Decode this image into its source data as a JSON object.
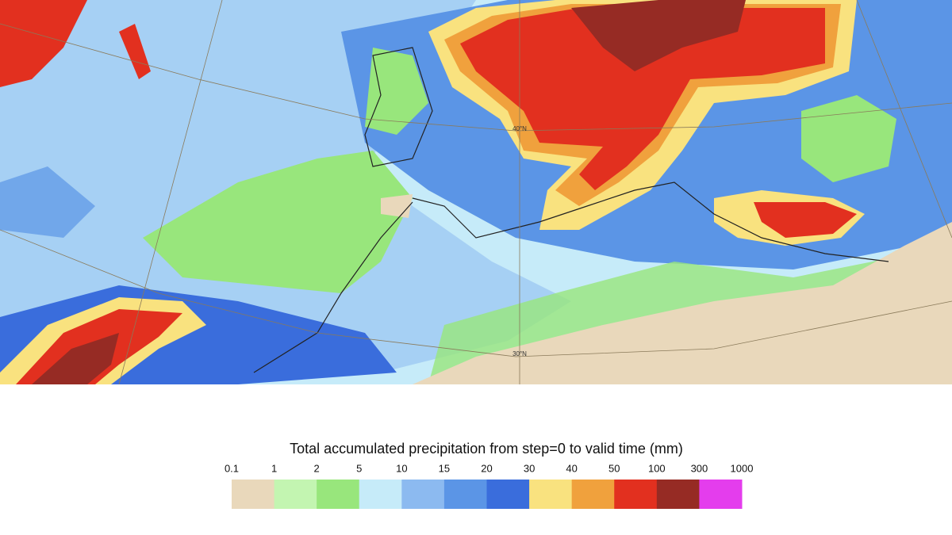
{
  "map": {
    "labels": [
      "40°N",
      "30°N"
    ]
  },
  "legend": {
    "title": "Total accumulated precipitation from step=0 to valid time (mm)",
    "ticks": [
      0.1,
      1,
      2,
      5,
      10,
      15,
      20,
      30,
      40,
      50,
      100,
      300,
      1000
    ],
    "colors": [
      "#e9d8bb",
      "#c3f5b1",
      "#98e67c",
      "#c6ebf9",
      "#8cbaf0",
      "#5b95e6",
      "#3a6ddc",
      "#f9e27f",
      "#f0a13d",
      "#e2301f",
      "#962b24",
      "#e43ded"
    ]
  }
}
